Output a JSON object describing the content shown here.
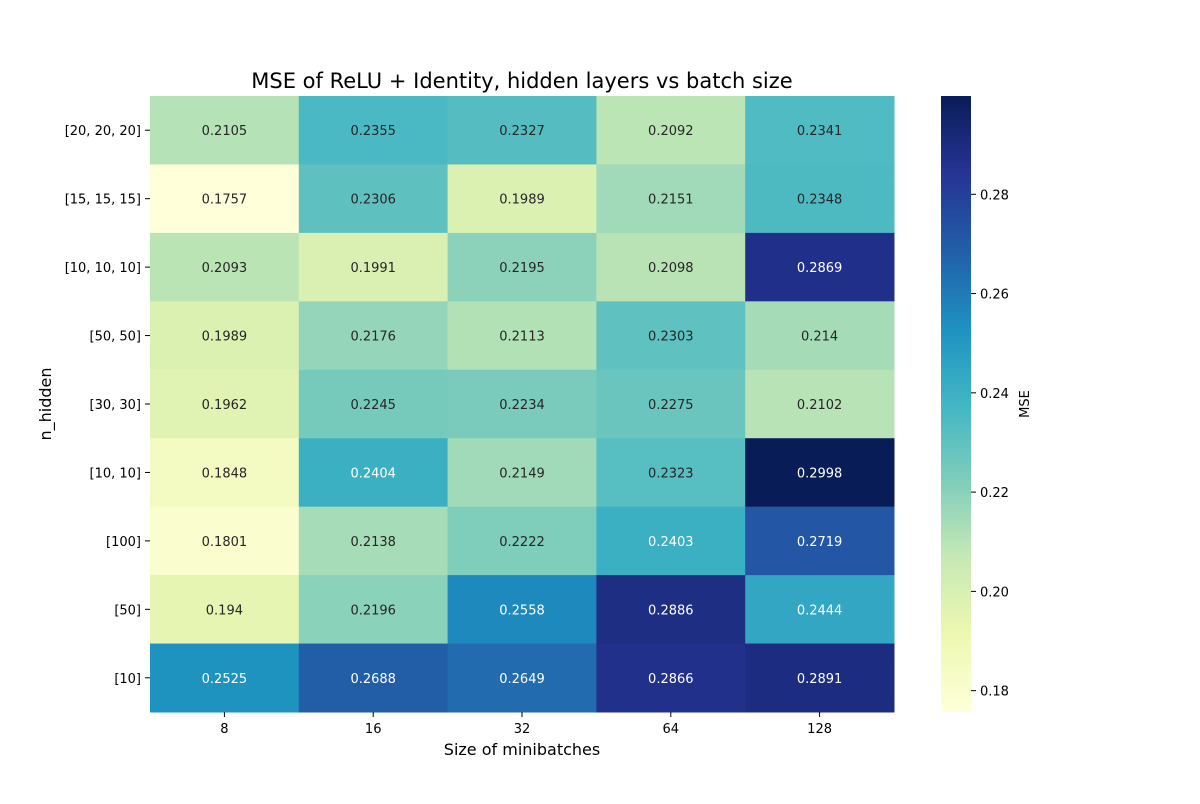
{
  "chart_data": {
    "type": "heatmap",
    "title": "MSE of ReLU + Identity, hidden layers vs batch size",
    "xlabel": "Size of minibatches",
    "ylabel": "n_hidden",
    "x_categories": [
      "8",
      "16",
      "32",
      "64",
      "128"
    ],
    "y_categories": [
      "[20, 20, 20]",
      "[15, 15, 15]",
      "[10, 10, 10]",
      "[50, 50]",
      "[30, 30]",
      "[10, 10]",
      "[100]",
      "[50]",
      "[10]"
    ],
    "values": [
      [
        0.2105,
        0.2355,
        0.2327,
        0.2092,
        0.2341
      ],
      [
        0.1757,
        0.2306,
        0.1989,
        0.2151,
        0.2348
      ],
      [
        0.2093,
        0.1991,
        0.2195,
        0.2098,
        0.2869
      ],
      [
        0.1989,
        0.2176,
        0.2113,
        0.2303,
        0.214
      ],
      [
        0.1962,
        0.2245,
        0.2234,
        0.2275,
        0.2102
      ],
      [
        0.1848,
        0.2404,
        0.2149,
        0.2323,
        0.2998
      ],
      [
        0.1801,
        0.2138,
        0.2222,
        0.2403,
        0.2719
      ],
      [
        0.194,
        0.2196,
        0.2558,
        0.2886,
        0.2444
      ],
      [
        0.2525,
        0.2688,
        0.2649,
        0.2866,
        0.2891
      ]
    ],
    "colormap": "YlGnBu",
    "colorbar": {
      "label": "MSE",
      "range": [
        0.1757,
        0.2998
      ],
      "ticks": [
        0.18,
        0.2,
        0.22,
        0.24,
        0.26,
        0.28
      ],
      "tick_labels": [
        "0.18",
        "0.20",
        "0.22",
        "0.24",
        "0.26",
        "0.28"
      ],
      "placement": "right"
    },
    "annotations": true,
    "grid": false
  }
}
